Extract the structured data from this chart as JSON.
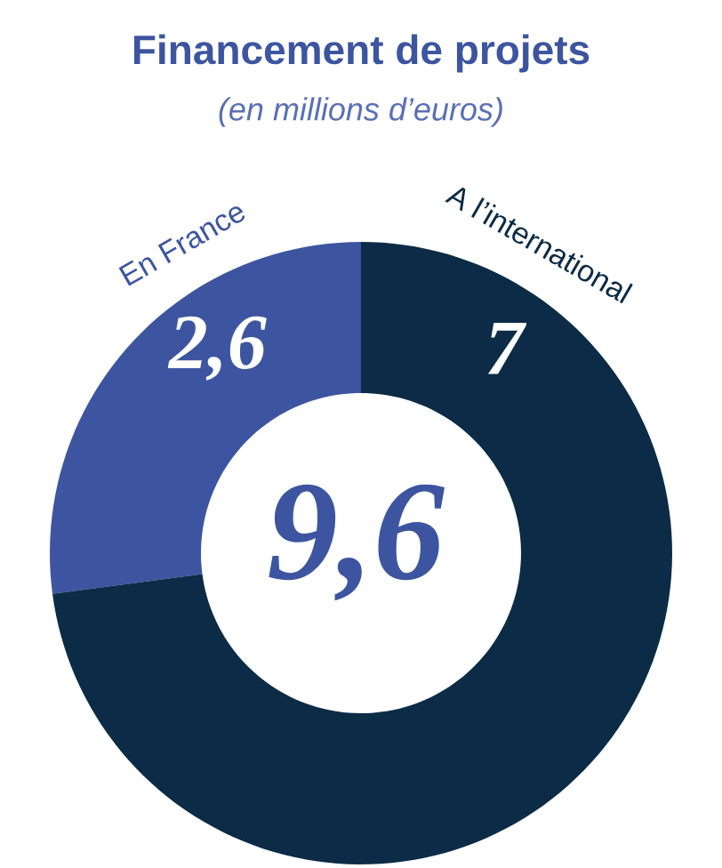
{
  "chart_data": {
    "type": "donut",
    "title": "Financement de projets",
    "subtitle": "(en millions d’euros)",
    "categories": [
      "En France",
      "A l’international"
    ],
    "values": [
      2.6,
      7
    ],
    "value_labels": [
      "2,6",
      "7"
    ],
    "colors": [
      "#3d55a0",
      "#0b2b46"
    ],
    "annotations": [
      "9,6"
    ]
  }
}
